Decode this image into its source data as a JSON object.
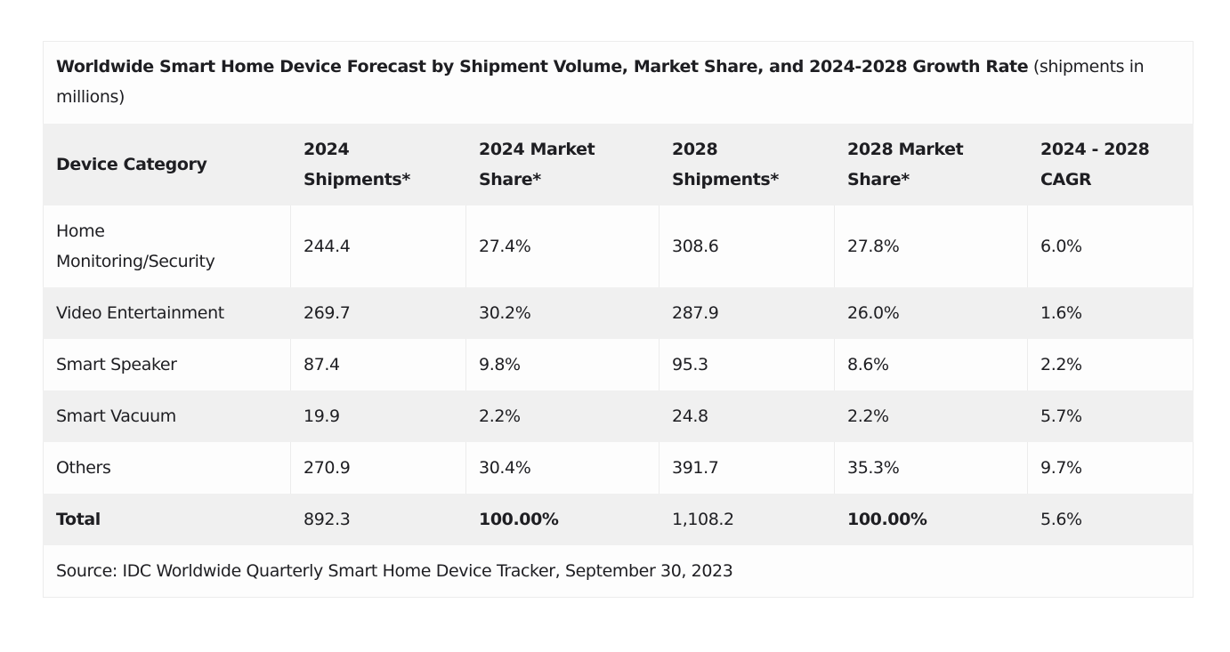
{
  "table": {
    "title_bold": "Worldwide Smart Home Device Forecast by Shipment Volume, Market Share, and 2024-2028 Growth Rate",
    "title_suffix": " (shipments in millions)",
    "headers": {
      "col1": "Device Category",
      "col2_line1": "2024",
      "col2_line2": "Shipments*",
      "col3_line1": "2024 Market",
      "col3_line2": "Share*",
      "col4_line1": "2028",
      "col4_line2": "Shipments*",
      "col5_line1": "2028 Market",
      "col5_line2": "Share*",
      "col6_line1": "2024 - 2028",
      "col6_line2": "CAGR"
    },
    "rows": [
      {
        "category_line1": "Home",
        "category_line2": "Monitoring/Security",
        "shipments_2024": "244.4",
        "share_2024": "27.4%",
        "shipments_2028": "308.6",
        "share_2028": "27.8%",
        "cagr": "6.0%"
      },
      {
        "category": "Video Entertainment",
        "shipments_2024": "269.7",
        "share_2024": "30.2%",
        "shipments_2028": "287.9",
        "share_2028": "26.0%",
        "cagr": "1.6%"
      },
      {
        "category": "Smart Speaker",
        "shipments_2024": "87.4",
        "share_2024": "9.8%",
        "shipments_2028": "95.3",
        "share_2028": "8.6%",
        "cagr": "2.2%"
      },
      {
        "category": "Smart Vacuum",
        "shipments_2024": "19.9",
        "share_2024": "2.2%",
        "shipments_2028": "24.8",
        "share_2028": "2.2%",
        "cagr": "5.7%"
      },
      {
        "category": "Others",
        "shipments_2024": "270.9",
        "share_2024": "30.4%",
        "shipments_2028": "391.7",
        "share_2028": "35.3%",
        "cagr": "9.7%"
      }
    ],
    "total": {
      "category": "Total",
      "shipments_2024": "892.3",
      "share_2024": "100.00%",
      "shipments_2028": "1,108.2",
      "share_2028": "100.00%",
      "cagr": "5.6%"
    },
    "source": "Source: IDC Worldwide Quarterly Smart Home Device Tracker, September 30, 2023"
  }
}
